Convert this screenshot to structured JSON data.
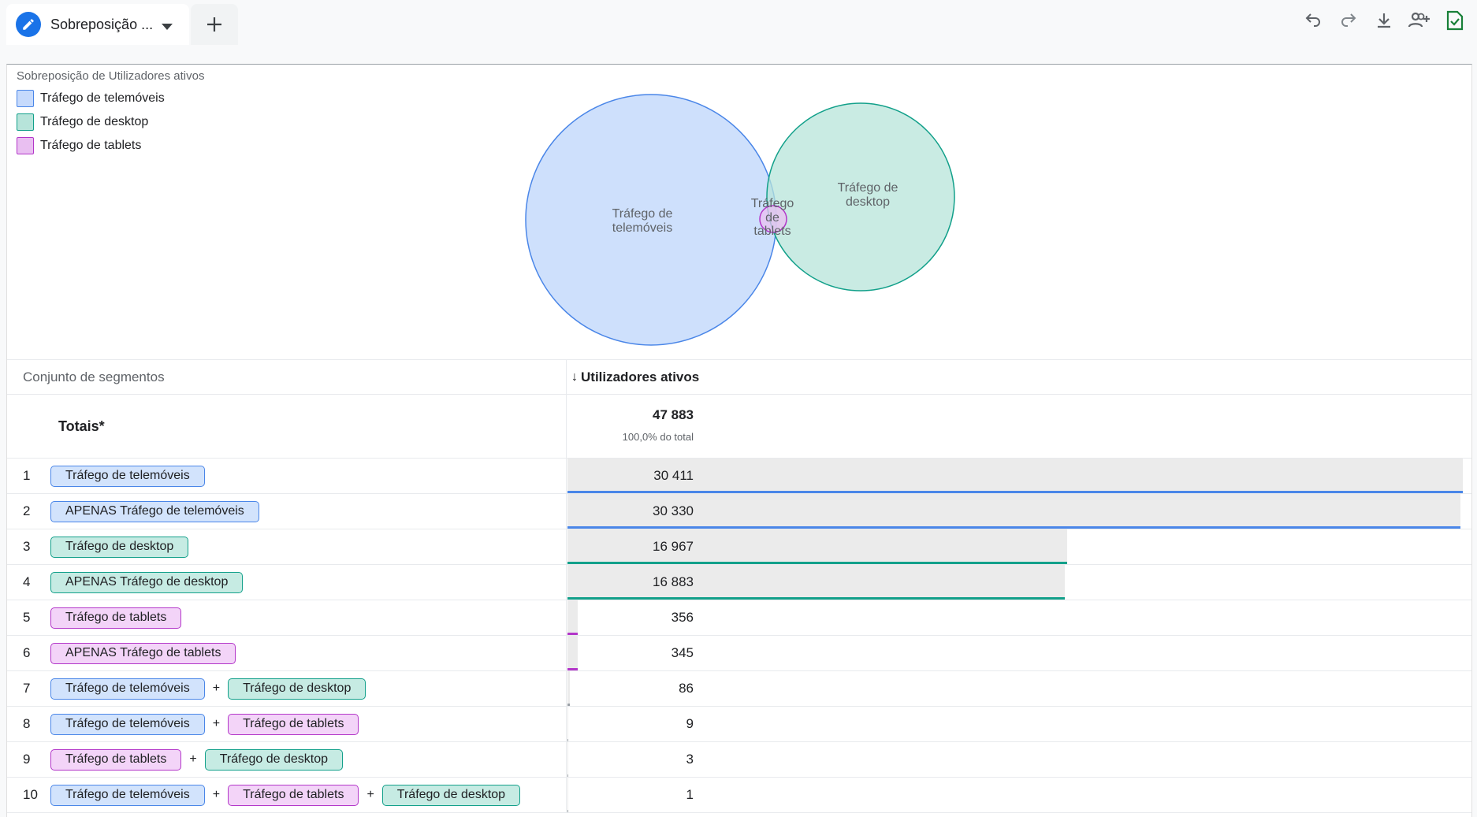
{
  "tab": {
    "title": "Sobreposição ...",
    "icon": "pencil-icon"
  },
  "toolbar": [
    "undo-icon",
    "redo-icon",
    "download-icon",
    "share-user-icon",
    "save-check-icon"
  ],
  "chart": {
    "title": "Sobreposição de Utilizadores ativos",
    "legend": [
      {
        "label": "Tráfego de telemóveis",
        "color": "#c6dafc",
        "border": "#4a86e8"
      },
      {
        "label": "Tráfego de desktop",
        "color": "#b7e4da",
        "border": "#12a08a"
      },
      {
        "label": "Tráfego de tablets",
        "color": "#e9bff1",
        "border": "#b336c9"
      }
    ],
    "venn_labels": {
      "mobile": [
        "Tráfego de",
        "telemóveis"
      ],
      "desktop": [
        "Tráfego de",
        "desktop"
      ],
      "tablet": [
        "Tráfego",
        "de",
        "tablets"
      ]
    }
  },
  "chart_data": {
    "type": "venn",
    "title": "Sobreposição de Utilizadores ativos",
    "sets": [
      {
        "name": "Tráfego de telemóveis",
        "value": 30411
      },
      {
        "name": "Tráfego de desktop",
        "value": 16967
      },
      {
        "name": "Tráfego de tablets",
        "value": 356
      }
    ]
  },
  "table": {
    "col_segment": "Conjunto de segmentos",
    "col_metric": "Utilizadores ativos",
    "sort_arrow": "↓",
    "totals_label": "Totais*",
    "totals_value": "47 883",
    "totals_pct": "100,0% do total",
    "max_value": 30411,
    "rows": [
      {
        "num": "1",
        "chips": [
          {
            "label": "Tráfego de telemóveis",
            "kind": "mobile"
          }
        ],
        "value": "30 411",
        "raw": 30411
      },
      {
        "num": "2",
        "chips": [
          {
            "label": "APENAS Tráfego de telemóveis",
            "kind": "mobile"
          }
        ],
        "value": "30 330",
        "raw": 30330
      },
      {
        "num": "3",
        "chips": [
          {
            "label": "Tráfego de desktop",
            "kind": "desktop"
          }
        ],
        "value": "16 967",
        "raw": 16967
      },
      {
        "num": "4",
        "chips": [
          {
            "label": "APENAS Tráfego de desktop",
            "kind": "desktop"
          }
        ],
        "value": "16 883",
        "raw": 16883
      },
      {
        "num": "5",
        "chips": [
          {
            "label": "Tráfego de tablets",
            "kind": "tablet"
          }
        ],
        "value": "356",
        "raw": 356
      },
      {
        "num": "6",
        "chips": [
          {
            "label": "APENAS Tráfego de tablets",
            "kind": "tablet"
          }
        ],
        "value": "345",
        "raw": 345
      },
      {
        "num": "7",
        "chips": [
          {
            "label": "Tráfego de telemóveis",
            "kind": "mobile"
          },
          {
            "label": "Tráfego de desktop",
            "kind": "desktop"
          }
        ],
        "value": "86",
        "raw": 86
      },
      {
        "num": "8",
        "chips": [
          {
            "label": "Tráfego de telemóveis",
            "kind": "mobile"
          },
          {
            "label": "Tráfego de tablets",
            "kind": "tablet"
          }
        ],
        "value": "9",
        "raw": 9
      },
      {
        "num": "9",
        "chips": [
          {
            "label": "Tráfego de tablets",
            "kind": "tablet"
          },
          {
            "label": "Tráfego de desktop",
            "kind": "desktop"
          }
        ],
        "value": "3",
        "raw": 3
      },
      {
        "num": "10",
        "chips": [
          {
            "label": "Tráfego de telemóveis",
            "kind": "mobile"
          },
          {
            "label": "Tráfego de tablets",
            "kind": "tablet"
          },
          {
            "label": "Tráfego de desktop",
            "kind": "desktop"
          }
        ],
        "value": "1",
        "raw": 1
      }
    ]
  }
}
